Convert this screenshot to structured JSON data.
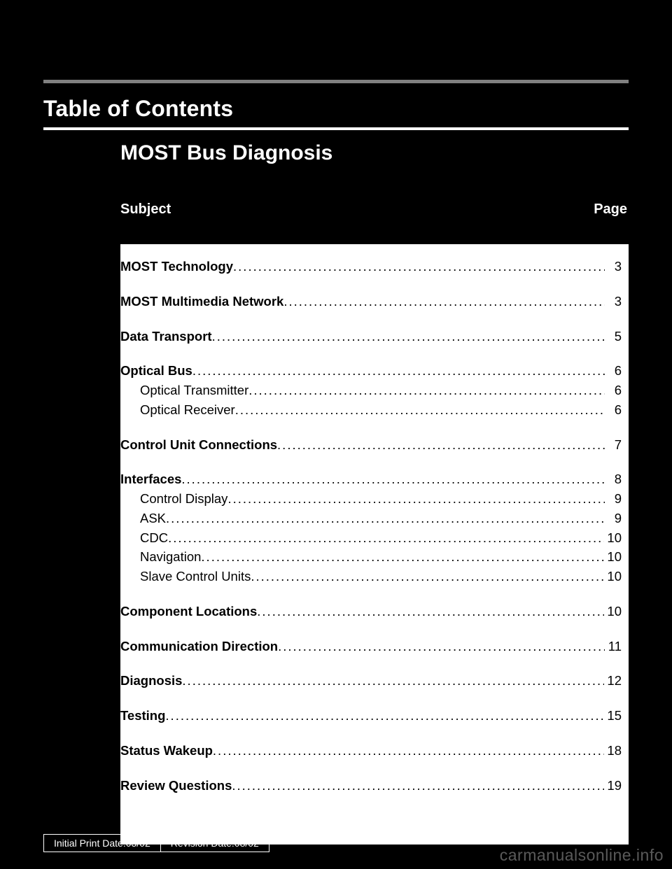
{
  "header": {
    "toc_label": "Table of Contents",
    "doc_title": "MOST Bus Diagnosis",
    "subject_label": "Subject",
    "page_label": "Page"
  },
  "toc": [
    {
      "label": "MOST Technology",
      "bold": true,
      "page": "3",
      "section": true,
      "gap": true
    },
    {
      "label": "MOST Multimedia Network",
      "bold": true,
      "page": "3",
      "section": true,
      "gap": false
    },
    {
      "label": "Data Transport",
      "bold": true,
      "page": "5",
      "section": true,
      "gap": true
    },
    {
      "label": "Optical Bus",
      "bold": true,
      "page": "6",
      "section": true,
      "gap": true
    },
    {
      "label": "Optical Transmitter",
      "bold": false,
      "page": "6",
      "sub": true,
      "gap": false
    },
    {
      "label": "Optical Receiver",
      "bold": false,
      "page": "6",
      "sub": true,
      "gap": false
    },
    {
      "label": "Control Unit Connections",
      "bold": true,
      "page": "7",
      "section": true,
      "gap": false
    },
    {
      "label": "Interfaces",
      "bold": true,
      "page": "8",
      "section": true,
      "gap": false
    },
    {
      "label": "Control Display",
      "bold": false,
      "page": "9",
      "sub": true,
      "gap": true
    },
    {
      "label": "ASK",
      "bold": false,
      "page": "9",
      "sub": true,
      "gap": true
    },
    {
      "label": "CDC",
      "bold": false,
      "page": "10",
      "sub": true,
      "gap": false
    },
    {
      "label": "Navigation",
      "bold": false,
      "page": "10",
      "sub": true,
      "gap": false
    },
    {
      "label": "Slave Control Units",
      "bold": false,
      "page": "10",
      "sub": true,
      "gap": false
    },
    {
      "label": "Component Locations",
      "bold": true,
      "page": "10",
      "section": true,
      "gap": false
    },
    {
      "label": "Communication Direction",
      "bold": true,
      "page": "11",
      "section": true,
      "gap": false
    },
    {
      "label": "Diagnosis",
      "bold": true,
      "page": "12",
      "section": true,
      "gap": false
    },
    {
      "label": "Testing",
      "bold": true,
      "page": "15",
      "section": true,
      "gap": false
    },
    {
      "label": "Status Wakeup",
      "bold": true,
      "page": "18",
      "section": true,
      "gap": false
    },
    {
      "label": "Review Questions",
      "bold": true,
      "page": "19",
      "section": true,
      "gap": false
    }
  ],
  "footer": {
    "initial": "Initial Print Date:03/02",
    "revision": "Revision Date:08/02"
  },
  "watermark": "carmanualsonline.info",
  "colors": {
    "background": "#000000",
    "page_bg": "#ffffff",
    "gray_line": "#808080",
    "text_light": "#ffffff",
    "text_dark": "#000000"
  }
}
